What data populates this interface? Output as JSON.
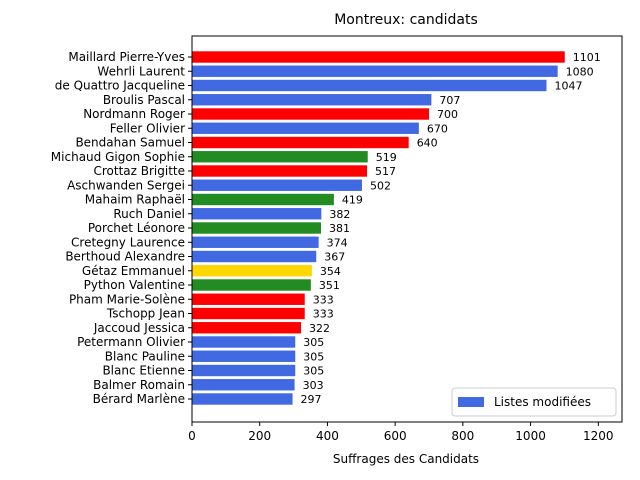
{
  "chart_data": {
    "type": "bar",
    "orientation": "horizontal",
    "title": "Montreux: candidats",
    "xlabel": "Suffrages des Candidats",
    "ylabel": "",
    "xlim": [
      0,
      1270
    ],
    "xticks": [
      0,
      200,
      400,
      600,
      800,
      1000,
      1200
    ],
    "grid": false,
    "legend": {
      "placement": "bottom-right",
      "entries": [
        {
          "label": "Listes modifiées",
          "color": "#4169e1"
        }
      ]
    },
    "categories": [
      "Maillard Pierre-Yves",
      "Wehrli Laurent",
      "de Quattro Jacqueline",
      "Broulis Pascal",
      "Nordmann Roger",
      "Feller Olivier",
      "Bendahan Samuel",
      "Michaud Gigon Sophie",
      "Crottaz Brigitte",
      "Aschwanden Sergei",
      "Mahaim Raphaël",
      "Ruch Daniel",
      "Porchet Léonore",
      "Cretegny Laurence",
      "Berthoud Alexandre",
      "Gétaz Emmanuel",
      "Python Valentine",
      "Pham Marie-Solène",
      "Tschopp Jean",
      "Jaccoud Jessica",
      "Petermann Olivier",
      "Blanc Pauline",
      "Blanc Etienne",
      "Balmer Romain",
      "Bérard Marlène"
    ],
    "values": [
      1101,
      1080,
      1047,
      707,
      700,
      670,
      640,
      519,
      517,
      502,
      419,
      382,
      381,
      374,
      367,
      354,
      351,
      333,
      333,
      322,
      305,
      305,
      305,
      303,
      297
    ],
    "colors": [
      "#ff0000",
      "#4169e1",
      "#4169e1",
      "#4169e1",
      "#ff0000",
      "#4169e1",
      "#ff0000",
      "#228b22",
      "#ff0000",
      "#4169e1",
      "#228b22",
      "#4169e1",
      "#228b22",
      "#4169e1",
      "#4169e1",
      "#ffd700",
      "#228b22",
      "#ff0000",
      "#ff0000",
      "#ff0000",
      "#4169e1",
      "#4169e1",
      "#4169e1",
      "#4169e1",
      "#4169e1"
    ]
  }
}
